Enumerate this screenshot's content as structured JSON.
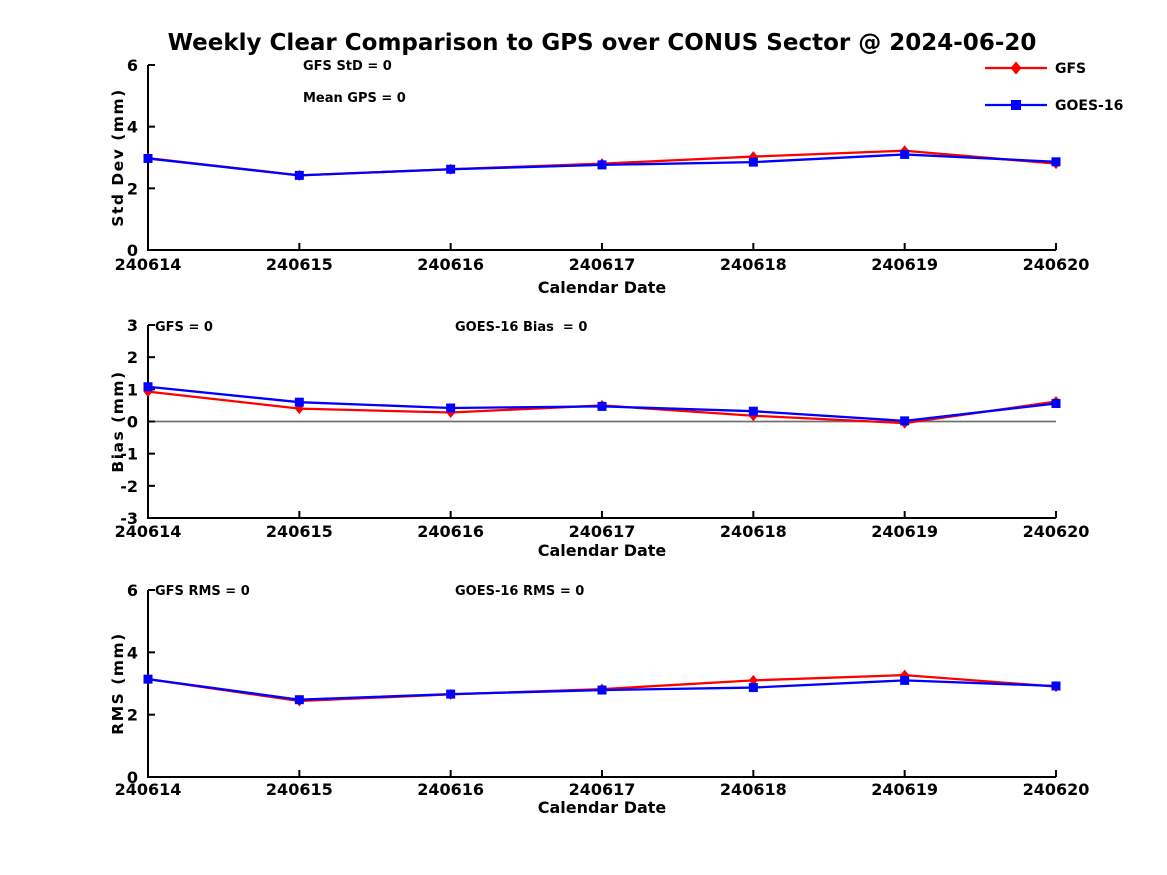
{
  "title": "Weekly Clear Comparison to GPS over CONUS Sector @ 2024-06-20",
  "colors": {
    "gfs": "#ff0000",
    "goes16": "#0000ff",
    "axis": "#000000",
    "zero_line": "#707070",
    "background": "#ffffff"
  },
  "legend": {
    "position": "top-right",
    "entries": [
      {
        "label": "GFS",
        "color": "#ff0000",
        "marker": "diamond"
      },
      {
        "label": "GOES-16",
        "color": "#0000ff",
        "marker": "square"
      }
    ]
  },
  "chart_data": [
    {
      "type": "line",
      "name": "std-dev",
      "ylabel": "Std Dev (mm)",
      "xlabel": "Calendar Date",
      "ylim": [
        0,
        6
      ],
      "yticks": [
        0,
        2,
        4,
        6
      ],
      "grid": false,
      "zero_line": false,
      "legend": true,
      "categories": [
        "240614",
        "240615",
        "240616",
        "240617",
        "240618",
        "240619",
        "240620"
      ],
      "annotations": [
        "GFS StD = 0",
        "Mean GPS = 0"
      ],
      "series": [
        {
          "name": "GFS",
          "color": "#ff0000",
          "marker": "diamond",
          "values": [
            2.98,
            2.42,
            2.62,
            2.8,
            3.03,
            3.22,
            2.8
          ]
        },
        {
          "name": "GOES-16",
          "color": "#0000ff",
          "marker": "square",
          "values": [
            2.97,
            2.42,
            2.62,
            2.76,
            2.85,
            3.1,
            2.86
          ]
        }
      ]
    },
    {
      "type": "line",
      "name": "bias",
      "ylabel": "Bias (mm)",
      "xlabel": "Calendar Date",
      "ylim": [
        -3,
        3
      ],
      "yticks": [
        -3,
        -2,
        -1,
        0,
        1,
        2,
        3
      ],
      "grid": false,
      "zero_line": true,
      "legend": false,
      "categories": [
        "240614",
        "240615",
        "240616",
        "240617",
        "240618",
        "240619",
        "240620"
      ],
      "annotations": [
        "GFS = 0",
        "GOES-16 Bias  = 0"
      ],
      "series": [
        {
          "name": "GFS",
          "color": "#ff0000",
          "marker": "diamond",
          "values": [
            0.93,
            0.4,
            0.28,
            0.5,
            0.18,
            -0.05,
            0.62
          ]
        },
        {
          "name": "GOES-16",
          "color": "#0000ff",
          "marker": "square",
          "values": [
            1.08,
            0.6,
            0.42,
            0.47,
            0.32,
            0.02,
            0.56
          ]
        }
      ]
    },
    {
      "type": "line",
      "name": "rms",
      "ylabel": "RMS (mm)",
      "xlabel": "Calendar Date",
      "ylim": [
        0,
        6
      ],
      "yticks": [
        0,
        2,
        4,
        6
      ],
      "grid": false,
      "zero_line": false,
      "legend": false,
      "categories": [
        "240614",
        "240615",
        "240616",
        "240617",
        "240618",
        "240619",
        "240620"
      ],
      "annotations": [
        "GFS RMS = 0",
        "GOES-16 RMS = 0"
      ],
      "series": [
        {
          "name": "GFS",
          "color": "#ff0000",
          "marker": "diamond",
          "values": [
            3.14,
            2.44,
            2.65,
            2.82,
            3.1,
            3.27,
            2.9
          ]
        },
        {
          "name": "GOES-16",
          "color": "#0000ff",
          "marker": "square",
          "values": [
            3.14,
            2.48,
            2.66,
            2.79,
            2.87,
            3.1,
            2.92
          ]
        }
      ]
    }
  ]
}
